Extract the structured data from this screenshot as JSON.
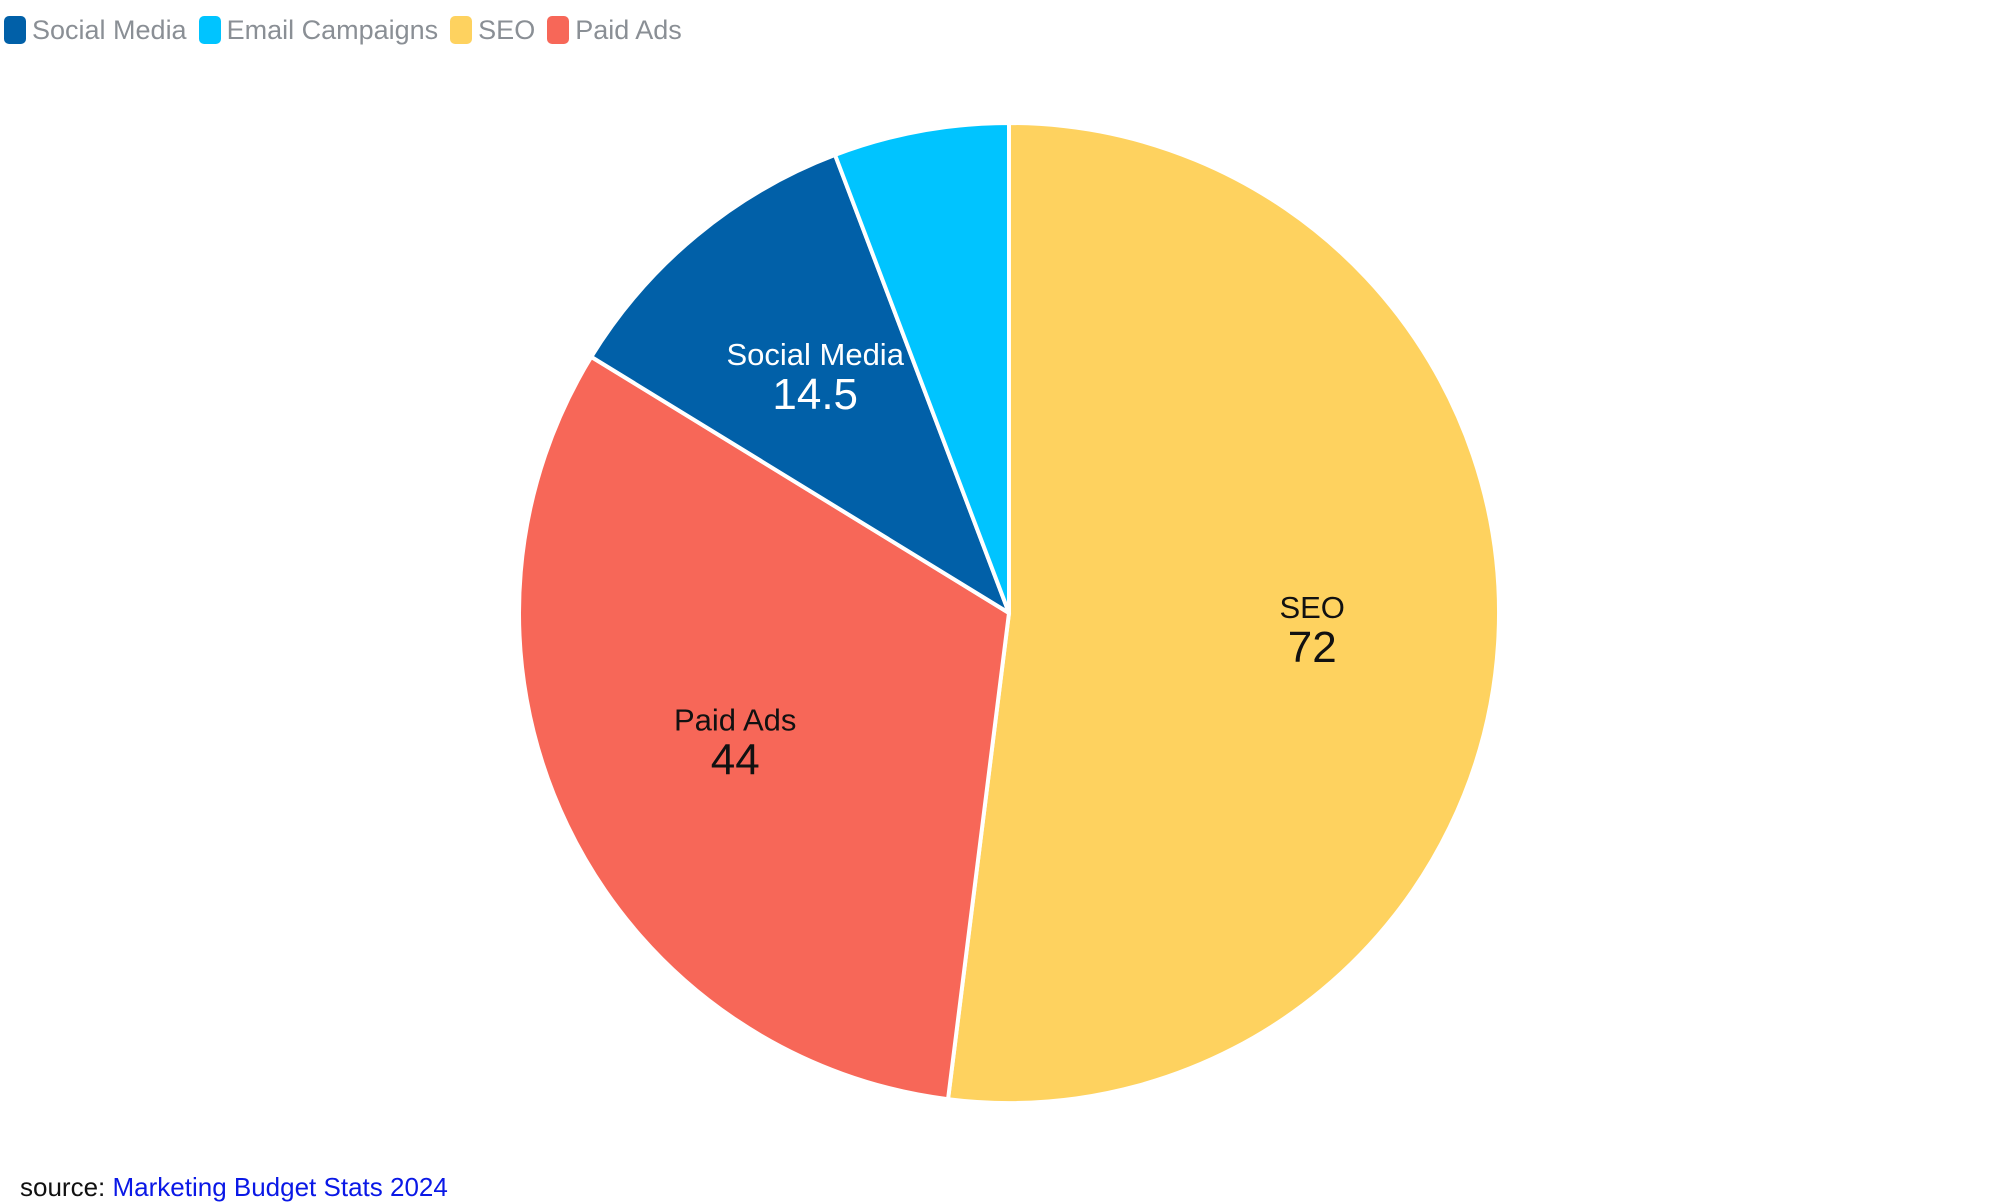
{
  "chart_data": {
    "type": "pie",
    "categories": [
      "Social Media",
      "Email Campaigns",
      "SEO",
      "Paid Ads"
    ],
    "values": [
      14.5,
      8,
      72,
      44
    ],
    "slice_labels": [
      {
        "name": "Social Media",
        "value": "14.5"
      },
      {
        "name": "",
        "value": ""
      },
      {
        "name": "SEO",
        "value": "72"
      },
      {
        "name": "Paid Ads",
        "value": "44"
      }
    ],
    "label_colors": [
      "#ffffff",
      "#000000",
      "#111111",
      "#111111"
    ],
    "colors": [
      "#0160a8",
      "#00c4ff",
      "#fed25f",
      "#f76758"
    ],
    "legend_position": "top-left",
    "start_angle_deg": 0,
    "direction": "clockwise"
  },
  "legend": {
    "items": [
      {
        "label": "Social Media",
        "color": "#0160a8"
      },
      {
        "label": "Email Campaigns",
        "color": "#00c4ff"
      },
      {
        "label": "SEO",
        "color": "#fed25f"
      },
      {
        "label": "Paid Ads",
        "color": "#f76758"
      }
    ]
  },
  "source": {
    "prefix": "source:",
    "link_text": "Marketing Budget Stats 2024"
  }
}
